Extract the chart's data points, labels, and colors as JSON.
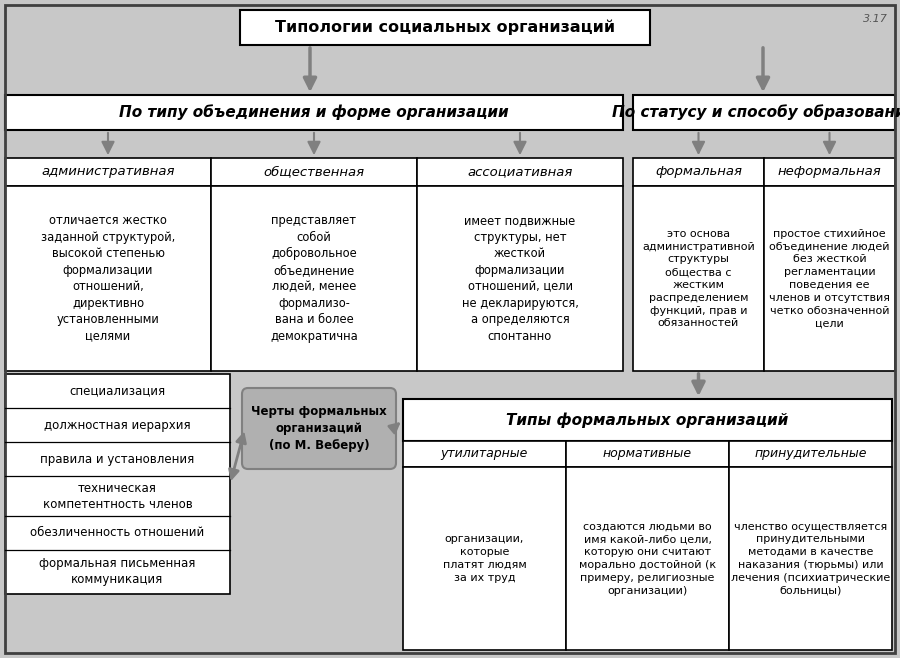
{
  "title": "Типологии социальных организаций",
  "page_num": "3.17",
  "bg_color": "#c8c8c8",
  "box_bg": "#ffffff",
  "box_border": "#000000",
  "arrow_color": "#808080",
  "header_left": "По типу объединения и форме организации",
  "header_right": "По статусу и способу образования",
  "col_headers_left": [
    "административная",
    "общественная",
    "ассоциативная"
  ],
  "col_headers_right": [
    "формальная",
    "неформальная"
  ],
  "col_desc_left": [
    "отличается жестко\nзаданной структурой,\nвысокой степенью\nформализации\nотношений,\nдирективно\nустановленными\nцелями",
    "представляет\nсобой\nдобровольное\nобъединение\nлюдей, менее\nформализо-\nвана и более\nдемократична",
    "имеет подвижные\nструктуры, нет\nжесткой\nформализации\nотношений, цели\nне декларируются,\nа определяются\nспонтанно"
  ],
  "col_desc_right": [
    "это основа\nадминистративной\nструктуры\nобщества с\nжестким\nраспределением\nфункций, прав и\nобязанностей",
    "простое стихийное\nобъединение людей\nбез жесткой\nрегламентации\nповедения ее\nчленов и отсутствия\nчетко обозначенной\nцели"
  ],
  "features_list": [
    "специализация",
    "должностная иерархия",
    "правила и установления",
    "техническая\nкомпетентность членов",
    "обезличенность отношений",
    "формальная письменная\nкоммуникация"
  ],
  "center_box_text": "Черты формальных\nорганизаций\n(по М. Веберу)",
  "formal_types_title": "Типы формальных организаций",
  "formal_col_headers": [
    "утилитарные",
    "нормативные",
    "принудительные"
  ],
  "formal_col_desc": [
    "организации,\nкоторые\nплатят людям\nза их труд",
    "создаются людьми во\nимя какой-либо цели,\nкоторую они считают\nморально достойной (к\nпримеру, религиозные\nорганизации)",
    "членство осуществляется\nпринудительными\nметодами в качестве\nнаказания (тюрьмы) или\nлечения (психиатрические\nбольницы)"
  ]
}
